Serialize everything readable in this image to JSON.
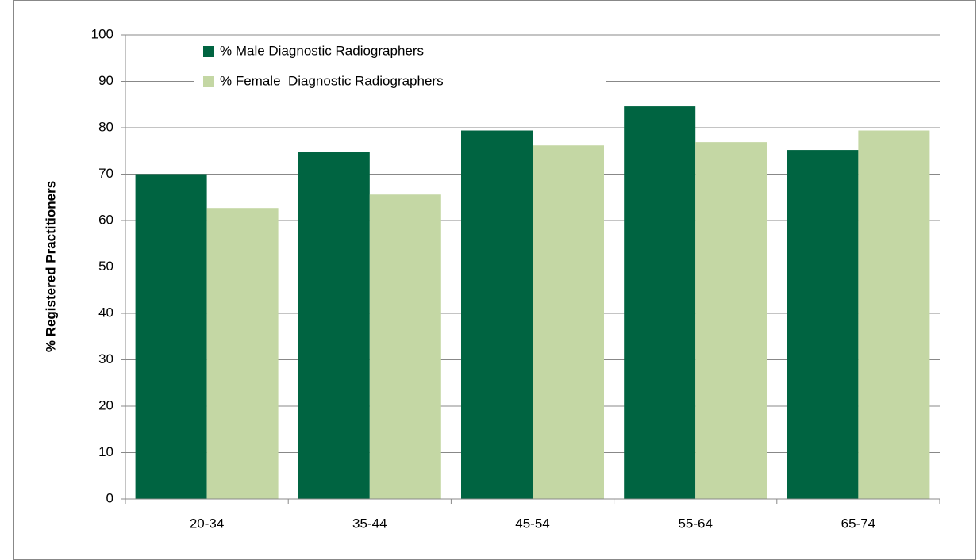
{
  "chart_data": {
    "type": "bar",
    "categories": [
      "20-34",
      "35-44",
      "45-54",
      "55-64",
      "65-74"
    ],
    "series": [
      {
        "name": "% Male Diagnostic Radiographers",
        "color": "#006441",
        "values": [
          70,
          74.7,
          79.4,
          84.6,
          75.2
        ]
      },
      {
        "name": "% Female  Diagnostic Radiographers",
        "color": "#c4d7a4",
        "values": [
          62.7,
          65.6,
          76.2,
          76.9,
          79.4
        ]
      }
    ],
    "ylabel": "% Registered Practitioners",
    "ylim": [
      0,
      100
    ],
    "yticks": [
      0,
      10,
      20,
      30,
      40,
      50,
      60,
      70,
      80,
      90,
      100
    ],
    "grid": true,
    "legend": "upper left"
  }
}
